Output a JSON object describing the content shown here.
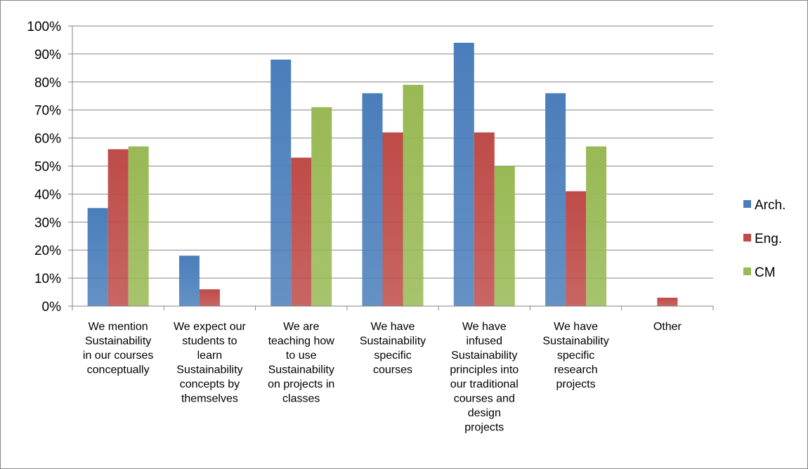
{
  "chart_data": {
    "type": "bar",
    "categories": [
      [
        "We mention",
        "Sustainability",
        "in our courses",
        "conceptually"
      ],
      [
        "We expect our",
        "students to",
        "learn",
        "Sustainability",
        "concepts by",
        "themselves"
      ],
      [
        "We are",
        "teaching how",
        "to use",
        "Sustainability",
        "on projects in",
        "classes"
      ],
      [
        "We have",
        "Sustainability",
        "specific",
        "courses"
      ],
      [
        "We have",
        "infused",
        "Sustainability",
        "principles into",
        "our traditional",
        "courses and",
        "design",
        "projects"
      ],
      [
        "We have",
        "Sustainability",
        "specific",
        "research",
        "projects"
      ],
      [
        "Other"
      ]
    ],
    "series": [
      {
        "name": "Arch.",
        "color": "#4a7ebb",
        "values": [
          35,
          18,
          88,
          76,
          94,
          76,
          0
        ]
      },
      {
        "name": "Eng.",
        "color": "#be4b48",
        "values": [
          56,
          6,
          53,
          62,
          62,
          41,
          3
        ]
      },
      {
        "name": "CM",
        "color": "#98b954",
        "values": [
          57,
          0,
          71,
          79,
          50,
          57,
          0
        ]
      }
    ],
    "ylim": [
      0,
      100
    ],
    "yticks": [
      "0%",
      "10%",
      "20%",
      "30%",
      "40%",
      "50%",
      "60%",
      "70%",
      "80%",
      "90%",
      "100%"
    ],
    "grid": true,
    "legend": "right"
  }
}
